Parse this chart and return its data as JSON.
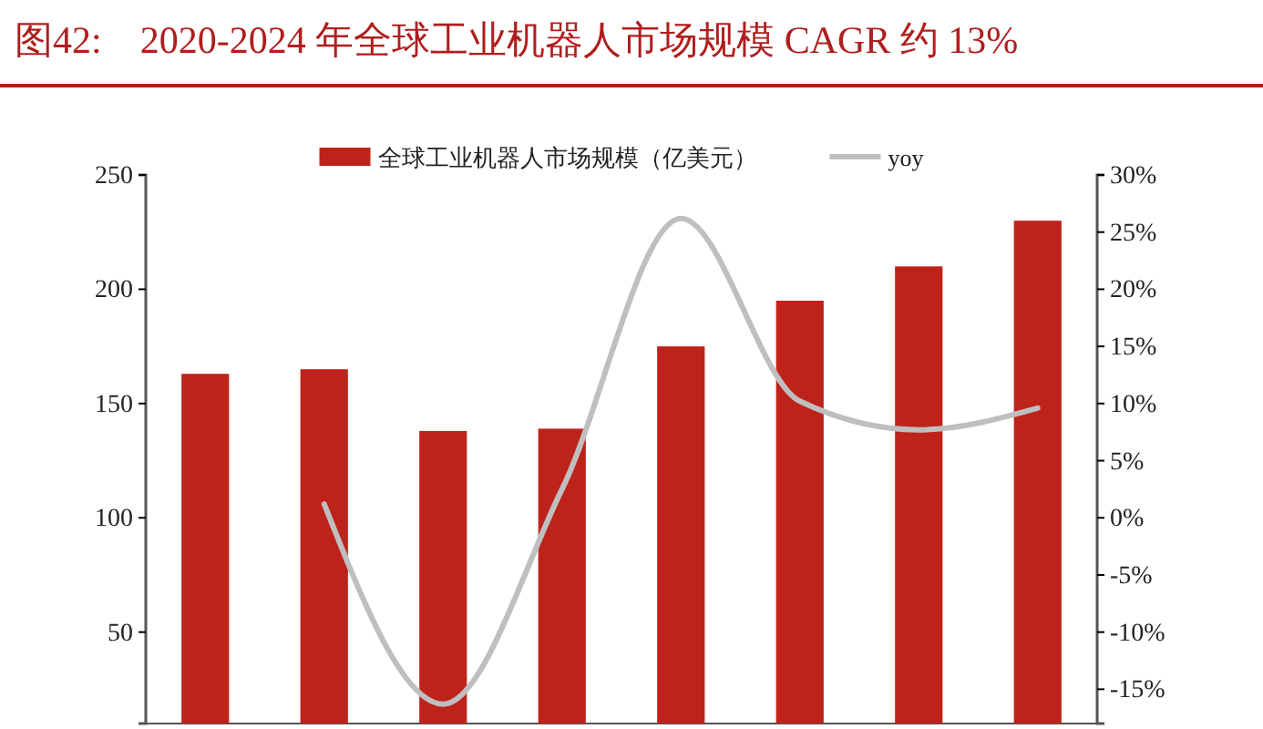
{
  "chart_data": {
    "type": "bar",
    "title": "图42:    2020-2024 年全球工业机器人市场规模 CAGR 约 13%",
    "categories": [
      null,
      null,
      null,
      null,
      null,
      null,
      null,
      null
    ],
    "series": [
      {
        "name": "全球工业机器人市场规模（亿美元）",
        "color": "#be231b",
        "values": [
          163,
          165,
          138,
          139,
          175,
          195,
          210,
          230
        ]
      },
      {
        "name": "yoy",
        "type": "line",
        "axis": "y2",
        "color": "#bfbfbf",
        "values": [
          null,
          1.2,
          -16.3,
          2.5,
          26.2,
          10.2,
          7.7,
          9.6
        ]
      }
    ],
    "ylim": [
      10,
      250
    ],
    "yticks": [
      50,
      100,
      150,
      200,
      250
    ],
    "y2lim": [
      -18,
      30
    ],
    "y2ticks": [
      {
        "value": -15,
        "label": "-15%"
      },
      {
        "value": -10,
        "label": "-10%"
      },
      {
        "value": -5,
        "label": "-5%"
      },
      {
        "value": 0,
        "label": "0%"
      },
      {
        "value": 5,
        "label": "5%"
      },
      {
        "value": 10,
        "label": "10%"
      },
      {
        "value": 15,
        "label": "15%"
      },
      {
        "value": 20,
        "label": "20%"
      },
      {
        "value": 25,
        "label": "25%"
      },
      {
        "value": 30,
        "label": "30%"
      }
    ],
    "legend": "top",
    "marker": "none"
  }
}
